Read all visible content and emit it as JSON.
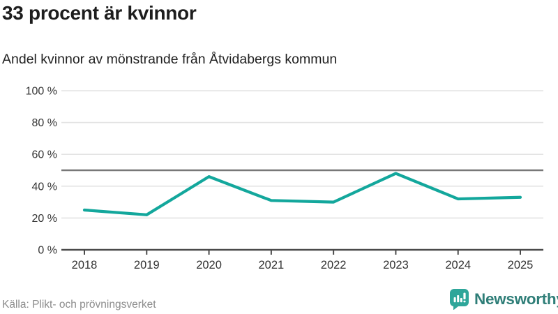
{
  "header": {
    "title": "33 procent är kvinnor",
    "subtitle": "Andel kvinnor av mönstrande från Åtvidabergs kommun"
  },
  "footer": {
    "source": "Källa: Plikt- och prövningsverket",
    "brand": "Newsworthy"
  },
  "colors": {
    "line": "#13a79c",
    "grid": "#e3e3e3",
    "reference_line": "#787878",
    "axis": "#4a4a4a",
    "tick_label": "#333333",
    "title": "#1d1d1d",
    "source": "#8c8c8c",
    "brand_icon": "#2ea69a",
    "brand_text": "#2f7e78"
  },
  "chart_data": {
    "type": "line",
    "title": "33 procent är kvinnor",
    "subtitle": "Andel kvinnor av mönstrande från Åtvidabergs kommun",
    "x": [
      2018,
      2019,
      2020,
      2021,
      2022,
      2023,
      2024,
      2025
    ],
    "series": [
      {
        "name": "Andel kvinnor (%)",
        "values": [
          25,
          22,
          46,
          31,
          30,
          48,
          32,
          33
        ]
      }
    ],
    "xlabel": "",
    "ylabel": "",
    "ylim": [
      0,
      100
    ],
    "yticks": [
      0,
      20,
      40,
      60,
      80,
      100
    ],
    "ytick_format": "{v} %",
    "reference_line": 50,
    "grid": "horizontal",
    "legend": "none"
  }
}
